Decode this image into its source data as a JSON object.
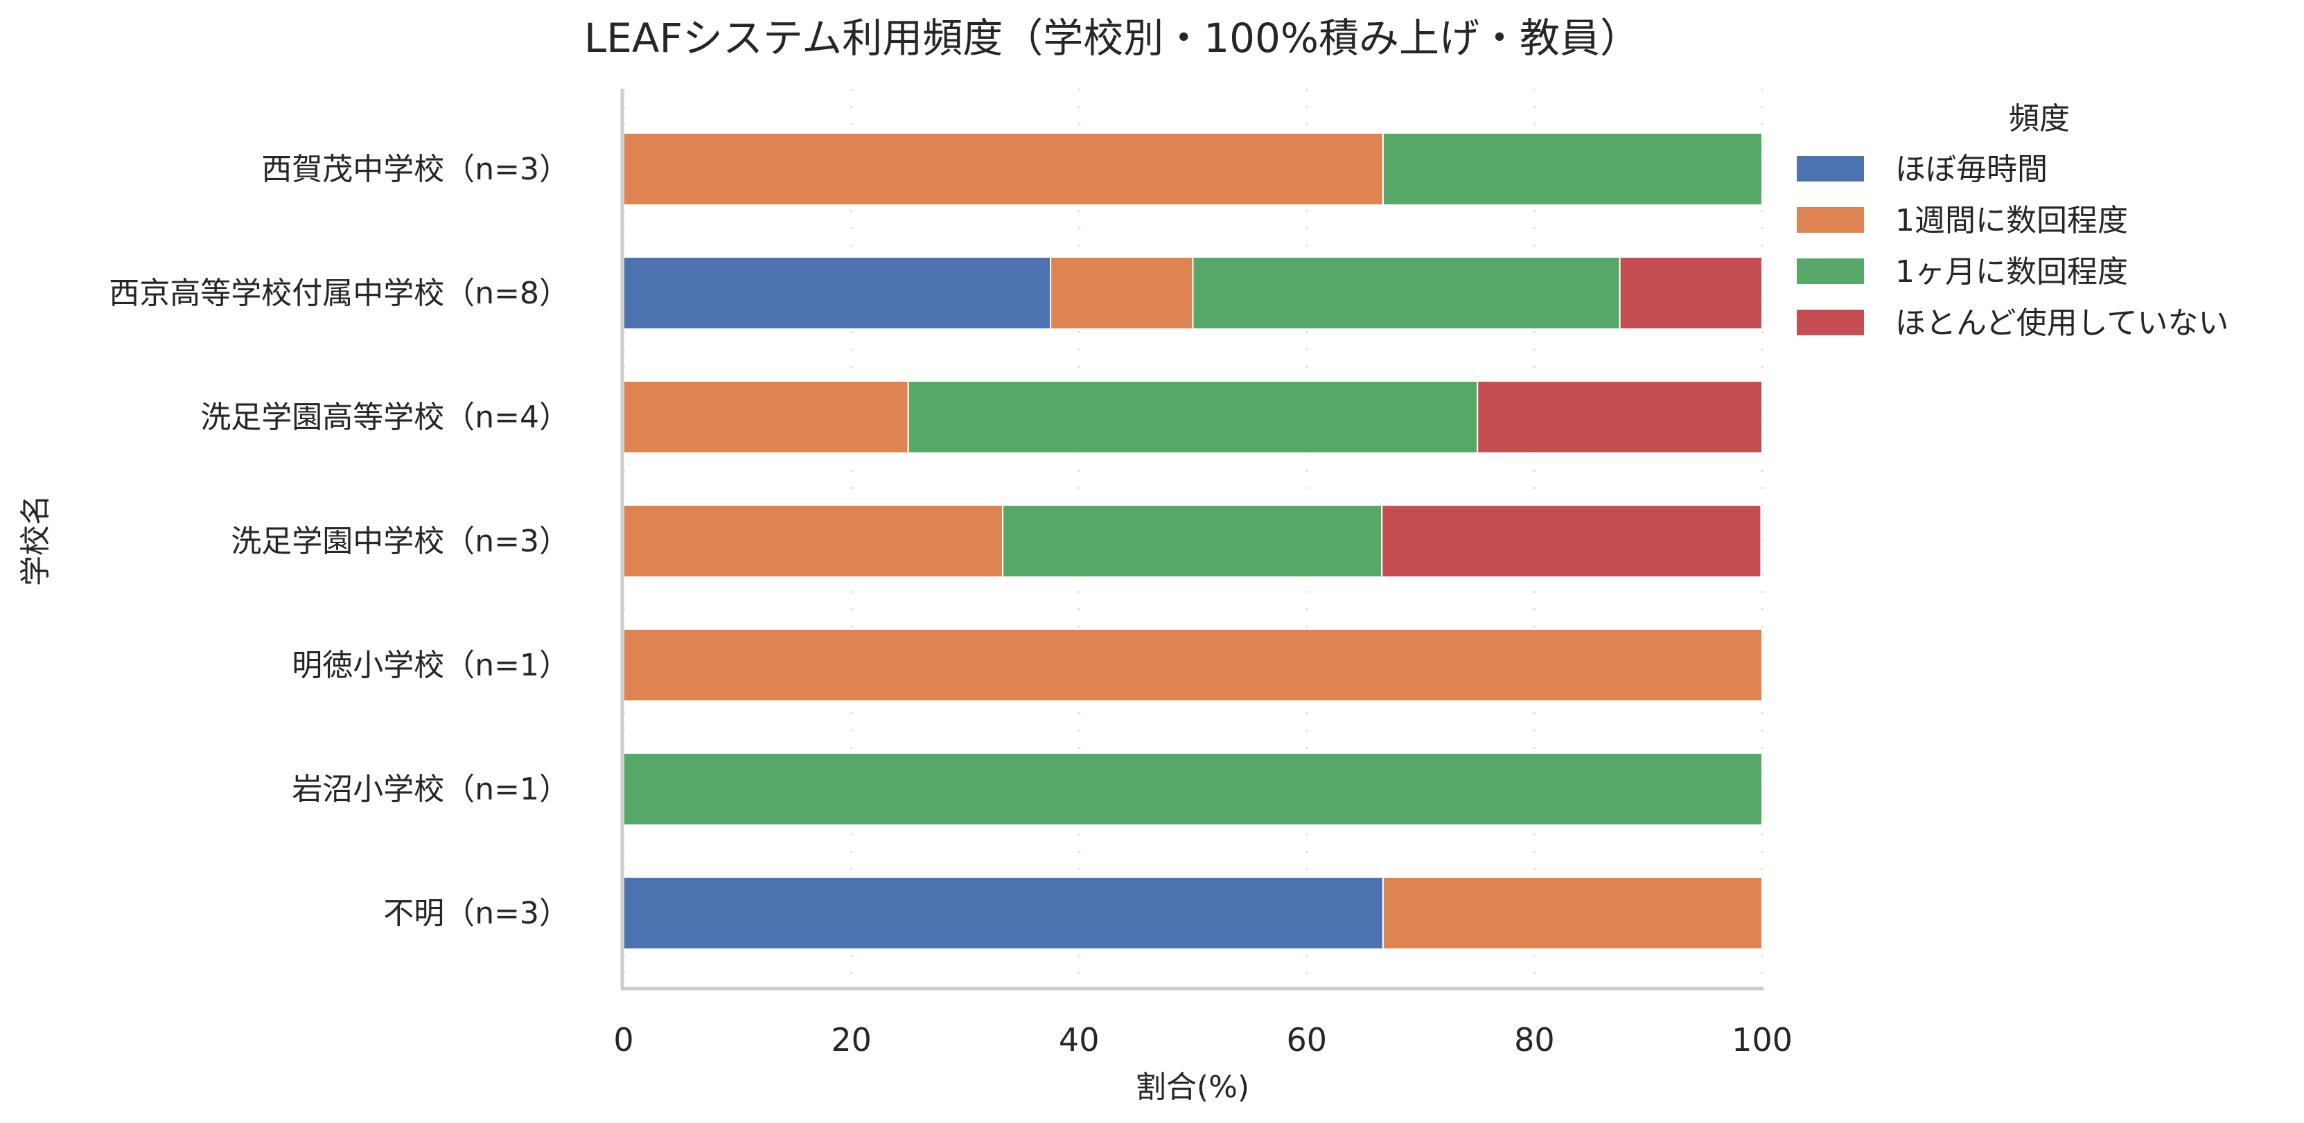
{
  "chart_data": {
    "type": "bar",
    "orientation": "horizontal",
    "stacked": true,
    "title": "LEAFシステム利用頻度（学校別・100%積み上げ・教員）",
    "xlabel": "割合(%)",
    "ylabel": "学校名",
    "xlim": [
      0,
      100
    ],
    "xticks": [
      "0",
      "20",
      "40",
      "60",
      "80",
      "100"
    ],
    "grid": "vertical-dotted",
    "legend_position": "right-top",
    "legend_title": "頻度",
    "categories": [
      "西賀茂中学校（n=3）",
      "西京高等学校付属中学校（n=8）",
      "洗足学園高等学校（n=4）",
      "洗足学園中学校（n=3）",
      "明徳小学校（n=1）",
      "岩沼小学校（n=1）",
      "不明（n=3）"
    ],
    "series": [
      {
        "name": "ほぼ毎時間",
        "color": "#4C72B0",
        "values": [
          0,
          37.5,
          0,
          0,
          0,
          0,
          66.7
        ]
      },
      {
        "name": "1週間に数回程度",
        "color": "#DD8452",
        "values": [
          66.7,
          12.5,
          25,
          33.3,
          100,
          0,
          33.3
        ]
      },
      {
        "name": "1ヶ月に数回程度",
        "color": "#55A868",
        "values": [
          33.3,
          37.5,
          50,
          33.3,
          0,
          100,
          0
        ]
      },
      {
        "name": "ほとんど使用していない",
        "color": "#C44E52",
        "values": [
          0,
          12.5,
          25,
          33.3,
          0,
          0,
          0
        ]
      }
    ]
  }
}
